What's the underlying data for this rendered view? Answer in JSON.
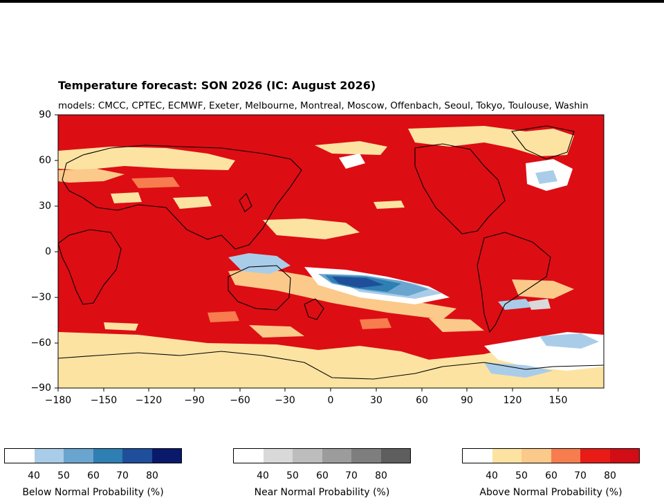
{
  "title": "Temperature forecast: SON 2026 (IC: August 2026)",
  "subtitle": "models: CMCC, CPTEC, ECMWF, Exeter, Melbourne, Montreal, Moscow, Offenbach, Seoul, Tokyo, Toulouse, Washin",
  "map": {
    "y_ticks": [
      "90",
      "60",
      "30",
      "0",
      "−30",
      "−60",
      "−90"
    ],
    "x_ticks": [
      "−180",
      "−150",
      "−120",
      "−90",
      "−60",
      "−30",
      "0",
      "30",
      "60",
      "90",
      "120",
      "150"
    ],
    "background_color": "#dd0d14"
  },
  "colorbars": [
    {
      "label": "Below Normal Probability (%)",
      "ticks": [
        "40",
        "50",
        "60",
        "70",
        "80"
      ],
      "colors": [
        "#ffffff",
        "#a9cde9",
        "#6aa5cf",
        "#2e7fb3",
        "#1f4e9b",
        "#0a1a6b"
      ]
    },
    {
      "label": "Near Normal Probability (%)",
      "ticks": [
        "40",
        "50",
        "60",
        "70",
        "80"
      ],
      "colors": [
        "#ffffff",
        "#d9d9d9",
        "#bdbdbd",
        "#9c9c9c",
        "#7e7e7e",
        "#5e5e5e"
      ]
    },
    {
      "label": "Above Normal Probability (%)",
      "ticks": [
        "40",
        "50",
        "60",
        "70",
        "80"
      ],
      "colors": [
        "#ffffff",
        "#fde3a2",
        "#fbc98a",
        "#f77c4e",
        "#e81b16",
        "#d20d16"
      ]
    }
  ]
}
